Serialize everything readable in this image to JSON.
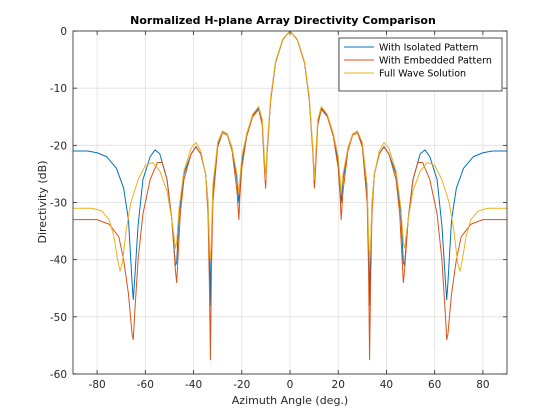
{
  "chart_data": {
    "type": "line",
    "title": "Normalized H-plane Array Directivity Comparison",
    "xlabel": "Azimuth Angle (deg.)",
    "ylabel": "Directivity (dB)",
    "xlim": [
      -90,
      90
    ],
    "ylim": [
      -60,
      0
    ],
    "xticks": [
      -80,
      -60,
      -40,
      -20,
      0,
      20,
      40,
      60,
      80
    ],
    "yticks": [
      0,
      -10,
      -20,
      -30,
      -40,
      -50,
      -60
    ],
    "grid": true,
    "legend_location": "top-right",
    "series": [
      {
        "name": "With Isolated Pattern",
        "color": "#0072BD",
        "points": [
          [
            -90,
            -21
          ],
          [
            -84,
            -21
          ],
          [
            -80,
            -21.3
          ],
          [
            -76,
            -22
          ],
          [
            -72,
            -24
          ],
          [
            -69,
            -27.5
          ],
          [
            -67,
            -33
          ],
          [
            -65.5,
            -44
          ],
          [
            -65,
            -47
          ],
          [
            -64.5,
            -44
          ],
          [
            -63,
            -34
          ],
          [
            -61,
            -26
          ],
          [
            -58,
            -22
          ],
          [
            -56,
            -20.8
          ],
          [
            -54,
            -21.5
          ],
          [
            -51,
            -26
          ],
          [
            -49,
            -33
          ],
          [
            -47.5,
            -41
          ],
          [
            -47,
            -40.5
          ],
          [
            -46,
            -32
          ],
          [
            -44,
            -25
          ],
          [
            -41,
            -21.5
          ],
          [
            -39,
            -20.2
          ],
          [
            -37,
            -21.5
          ],
          [
            -35,
            -25
          ],
          [
            -34,
            -30
          ],
          [
            -33.3,
            -40
          ],
          [
            -33,
            -48
          ],
          [
            -32.6,
            -38
          ],
          [
            -32,
            -28
          ],
          [
            -30,
            -20
          ],
          [
            -28,
            -17.5
          ],
          [
            -26,
            -18
          ],
          [
            -24,
            -20.5
          ],
          [
            -22,
            -26
          ],
          [
            -21.2,
            -30
          ],
          [
            -20.8,
            -28
          ],
          [
            -20,
            -23
          ],
          [
            -18,
            -18
          ],
          [
            -15.5,
            -14.8
          ],
          [
            -13,
            -13.5
          ],
          [
            -11.5,
            -16
          ],
          [
            -10.5,
            -24
          ],
          [
            -10.1,
            -26.5
          ],
          [
            -9.5,
            -21
          ],
          [
            -8,
            -12
          ],
          [
            -6,
            -5.5
          ],
          [
            -3,
            -1.5
          ],
          [
            0,
            0
          ],
          [
            3,
            -1.5
          ],
          [
            6,
            -5.5
          ],
          [
            8,
            -12
          ],
          [
            9.5,
            -21
          ],
          [
            10.1,
            -26.5
          ],
          [
            10.5,
            -24
          ],
          [
            11.5,
            -16
          ],
          [
            13,
            -13.5
          ],
          [
            15.5,
            -14.8
          ],
          [
            18,
            -18
          ],
          [
            20,
            -23
          ],
          [
            20.8,
            -28
          ],
          [
            21.2,
            -30
          ],
          [
            22,
            -26
          ],
          [
            24,
            -20.5
          ],
          [
            26,
            -18
          ],
          [
            28,
            -17.5
          ],
          [
            30,
            -20
          ],
          [
            32,
            -28
          ],
          [
            32.6,
            -38
          ],
          [
            33,
            -48
          ],
          [
            33.3,
            -40
          ],
          [
            34,
            -30
          ],
          [
            35,
            -25
          ],
          [
            37,
            -21.5
          ],
          [
            39,
            -20.2
          ],
          [
            41,
            -21.5
          ],
          [
            44,
            -25
          ],
          [
            46,
            -32
          ],
          [
            47,
            -40.5
          ],
          [
            47.5,
            -41
          ],
          [
            49,
            -33
          ],
          [
            51,
            -26
          ],
          [
            54,
            -21.5
          ],
          [
            56,
            -20.8
          ],
          [
            58,
            -22
          ],
          [
            61,
            -26
          ],
          [
            63,
            -34
          ],
          [
            64.5,
            -44
          ],
          [
            65,
            -47
          ],
          [
            65.5,
            -44
          ],
          [
            67,
            -33
          ],
          [
            69,
            -27.5
          ],
          [
            72,
            -24
          ],
          [
            76,
            -22
          ],
          [
            80,
            -21.3
          ],
          [
            84,
            -21
          ],
          [
            90,
            -21
          ]
        ]
      },
      {
        "name": "With Embedded Pattern",
        "color": "#D95319",
        "points": [
          [
            -90,
            -33
          ],
          [
            -80,
            -33
          ],
          [
            -75,
            -33.8
          ],
          [
            -71,
            -36
          ],
          [
            -69,
            -40
          ],
          [
            -67,
            -46
          ],
          [
            -65.5,
            -53
          ],
          [
            -65,
            -54
          ],
          [
            -64.5,
            -50
          ],
          [
            -63,
            -40
          ],
          [
            -61,
            -32
          ],
          [
            -58,
            -26
          ],
          [
            -55,
            -23
          ],
          [
            -53,
            -23
          ],
          [
            -51,
            -26
          ],
          [
            -49,
            -33
          ],
          [
            -47.5,
            -42
          ],
          [
            -47,
            -44
          ],
          [
            -46.5,
            -40
          ],
          [
            -45.5,
            -32
          ],
          [
            -44,
            -26
          ],
          [
            -41,
            -21.5
          ],
          [
            -39,
            -20.3
          ],
          [
            -37,
            -21.5
          ],
          [
            -35,
            -25
          ],
          [
            -34,
            -32
          ],
          [
            -33.4,
            -45
          ],
          [
            -33,
            -57.5
          ],
          [
            -32.6,
            -42
          ],
          [
            -32,
            -30
          ],
          [
            -30,
            -20.3
          ],
          [
            -28,
            -17.8
          ],
          [
            -26,
            -18.2
          ],
          [
            -24,
            -21
          ],
          [
            -22,
            -28
          ],
          [
            -21.2,
            -33
          ],
          [
            -20.8,
            -29
          ],
          [
            -20,
            -24
          ],
          [
            -18,
            -18.5
          ],
          [
            -15.5,
            -15
          ],
          [
            -13,
            -13.7
          ],
          [
            -11.5,
            -16.5
          ],
          [
            -10.5,
            -25
          ],
          [
            -10.1,
            -27.5
          ],
          [
            -9.5,
            -21.5
          ],
          [
            -8,
            -12
          ],
          [
            -6,
            -5.5
          ],
          [
            -3,
            -1.5
          ],
          [
            0,
            0
          ],
          [
            3,
            -1.5
          ],
          [
            6,
            -5.5
          ],
          [
            8,
            -12
          ],
          [
            9.5,
            -21.5
          ],
          [
            10.1,
            -27.5
          ],
          [
            10.5,
            -25
          ],
          [
            11.5,
            -16.5
          ],
          [
            13,
            -13.7
          ],
          [
            15.5,
            -15
          ],
          [
            18,
            -18.5
          ],
          [
            20,
            -24
          ],
          [
            20.8,
            -29
          ],
          [
            21.2,
            -33
          ],
          [
            22,
            -28
          ],
          [
            24,
            -21
          ],
          [
            26,
            -18.2
          ],
          [
            28,
            -17.8
          ],
          [
            30,
            -20.3
          ],
          [
            32,
            -30
          ],
          [
            32.6,
            -42
          ],
          [
            33,
            -57.5
          ],
          [
            33.4,
            -45
          ],
          [
            34,
            -32
          ],
          [
            35,
            -25
          ],
          [
            37,
            -21.5
          ],
          [
            39,
            -20.3
          ],
          [
            41,
            -21.5
          ],
          [
            44,
            -26
          ],
          [
            45.5,
            -32
          ],
          [
            46.5,
            -40
          ],
          [
            47,
            -44
          ],
          [
            47.5,
            -42
          ],
          [
            49,
            -33
          ],
          [
            51,
            -26
          ],
          [
            53,
            -23
          ],
          [
            55,
            -23
          ],
          [
            58,
            -26
          ],
          [
            61,
            -32
          ],
          [
            63,
            -40
          ],
          [
            64.5,
            -50
          ],
          [
            65,
            -54
          ],
          [
            65.5,
            -53
          ],
          [
            67,
            -46
          ],
          [
            69,
            -40
          ],
          [
            71,
            -36
          ],
          [
            75,
            -33.8
          ],
          [
            80,
            -33
          ],
          [
            90,
            -33
          ]
        ]
      },
      {
        "name": "Full Wave Solution",
        "color": "#EDB120",
        "points": [
          [
            -90,
            -31
          ],
          [
            -82,
            -31
          ],
          [
            -78,
            -31.5
          ],
          [
            -75,
            -33
          ],
          [
            -73,
            -36
          ],
          [
            -71.5,
            -40
          ],
          [
            -70.5,
            -42
          ],
          [
            -69.5,
            -40.5
          ],
          [
            -68,
            -35
          ],
          [
            -66,
            -30
          ],
          [
            -63,
            -26
          ],
          [
            -60,
            -23.5
          ],
          [
            -57,
            -23
          ],
          [
            -54,
            -24.5
          ],
          [
            -51,
            -28
          ],
          [
            -49,
            -33
          ],
          [
            -47.5,
            -38
          ],
          [
            -47,
            -37
          ],
          [
            -46,
            -31
          ],
          [
            -44,
            -24.5
          ],
          [
            -41,
            -20.5
          ],
          [
            -39,
            -19.5
          ],
          [
            -37,
            -21
          ],
          [
            -35,
            -25
          ],
          [
            -34,
            -30
          ],
          [
            -33.4,
            -38
          ],
          [
            -33,
            -40
          ],
          [
            -32.6,
            -36
          ],
          [
            -32,
            -27
          ],
          [
            -30,
            -19.5
          ],
          [
            -28,
            -17.5
          ],
          [
            -26,
            -18
          ],
          [
            -24,
            -20.5
          ],
          [
            -22,
            -25
          ],
          [
            -21.2,
            -28.5
          ],
          [
            -20.8,
            -26
          ],
          [
            -20,
            -22
          ],
          [
            -18,
            -18
          ],
          [
            -15.5,
            -14.6
          ],
          [
            -13,
            -13.2
          ],
          [
            -11.5,
            -15.5
          ],
          [
            -10.5,
            -23
          ],
          [
            -10.1,
            -26
          ],
          [
            -9.5,
            -20.5
          ],
          [
            -8,
            -11.5
          ],
          [
            -6,
            -5.3
          ],
          [
            -3,
            -1.4
          ],
          [
            0,
            0
          ],
          [
            3,
            -1.4
          ],
          [
            6,
            -5.3
          ],
          [
            8,
            -11.5
          ],
          [
            9.5,
            -20.5
          ],
          [
            10.1,
            -26
          ],
          [
            10.5,
            -23
          ],
          [
            11.5,
            -15.5
          ],
          [
            13,
            -13.2
          ],
          [
            15.5,
            -14.6
          ],
          [
            18,
            -18
          ],
          [
            20,
            -22
          ],
          [
            20.8,
            -26
          ],
          [
            21.2,
            -28.5
          ],
          [
            22,
            -25
          ],
          [
            24,
            -20.5
          ],
          [
            26,
            -18
          ],
          [
            28,
            -17.5
          ],
          [
            30,
            -19.5
          ],
          [
            32,
            -27
          ],
          [
            32.6,
            -36
          ],
          [
            33,
            -40
          ],
          [
            33.4,
            -38
          ],
          [
            34,
            -30
          ],
          [
            35,
            -25
          ],
          [
            37,
            -21
          ],
          [
            39,
            -19.5
          ],
          [
            41,
            -20.5
          ],
          [
            44,
            -24.5
          ],
          [
            46,
            -31
          ],
          [
            47,
            -37
          ],
          [
            47.5,
            -38
          ],
          [
            49,
            -33
          ],
          [
            51,
            -28
          ],
          [
            54,
            -24.5
          ],
          [
            57,
            -23
          ],
          [
            60,
            -23.5
          ],
          [
            63,
            -26
          ],
          [
            66,
            -30
          ],
          [
            68,
            -35
          ],
          [
            69.5,
            -40.5
          ],
          [
            70.5,
            -42
          ],
          [
            71.5,
            -40
          ],
          [
            73,
            -36
          ],
          [
            75,
            -33
          ],
          [
            78,
            -31.5
          ],
          [
            82,
            -31
          ],
          [
            90,
            -31
          ]
        ]
      }
    ]
  }
}
